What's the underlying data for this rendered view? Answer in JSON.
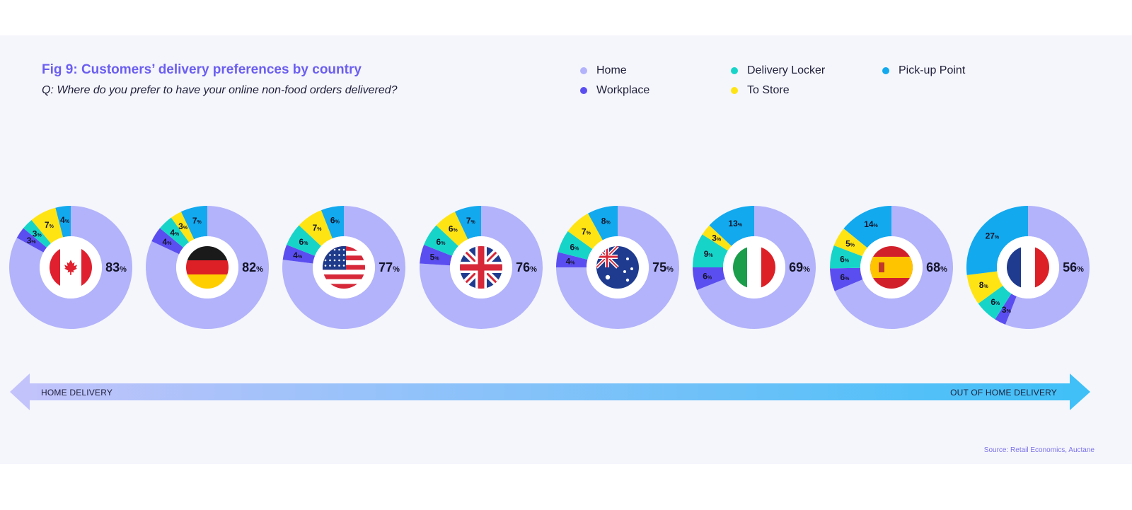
{
  "title": "Fig 9: Customers’ delivery preferences by country",
  "subtitle": "Q: Where do you prefer to have your online non-food orders delivered?",
  "legend": [
    {
      "label": "Home",
      "color": "#b3b3fb"
    },
    {
      "label": "Workplace",
      "color": "#5b4ef0"
    },
    {
      "label": "Delivery Locker",
      "color": "#17d4c9"
    },
    {
      "label": "To Store",
      "color": "#ffe414"
    },
    {
      "label": "Pick-up Point",
      "color": "#12a9ee"
    }
  ],
  "arrow": {
    "left_label": "HOME DELIVERY",
    "right_label": "OUT OF HOME DELIVERY"
  },
  "source": "Source: Retail Economics, Auctane",
  "percent_sign": "%",
  "chart_data": {
    "type": "pie",
    "series_names": [
      "Home",
      "Workplace",
      "Delivery Locker",
      "To Store",
      "Pick-up Point"
    ],
    "countries": [
      {
        "flag": "canada",
        "values": [
          83,
          3,
          3,
          7,
          4
        ],
        "labels": [
          "83",
          "3",
          "3",
          "7",
          "4"
        ]
      },
      {
        "flag": "germany",
        "values": [
          82,
          4,
          4,
          3,
          7
        ],
        "labels": [
          "82",
          "4",
          "4",
          "3",
          "7"
        ]
      },
      {
        "flag": "usa",
        "values": [
          77,
          4,
          6,
          7,
          6
        ],
        "labels": [
          "77",
          "4",
          "6",
          "7",
          "6"
        ]
      },
      {
        "flag": "uk",
        "values": [
          76,
          5,
          6,
          6,
          7
        ],
        "labels": [
          "76",
          "5",
          "6",
          "6",
          "7"
        ]
      },
      {
        "flag": "australia",
        "values": [
          75,
          4,
          6,
          7,
          8
        ],
        "labels": [
          "75",
          "4",
          "6",
          "7",
          "8"
        ]
      },
      {
        "flag": "italy",
        "values": [
          69,
          6,
          9,
          3,
          13
        ],
        "labels": [
          "69",
          "6",
          "9",
          "3",
          "13"
        ]
      },
      {
        "flag": "spain",
        "values": [
          68,
          6,
          6,
          5,
          14
        ],
        "labels": [
          "68",
          "6",
          "6",
          "5",
          "14"
        ]
      },
      {
        "flag": "france",
        "values": [
          56,
          3,
          6,
          8,
          27
        ],
        "labels": [
          "56",
          "3",
          "6",
          "8",
          "27"
        ]
      }
    ]
  }
}
